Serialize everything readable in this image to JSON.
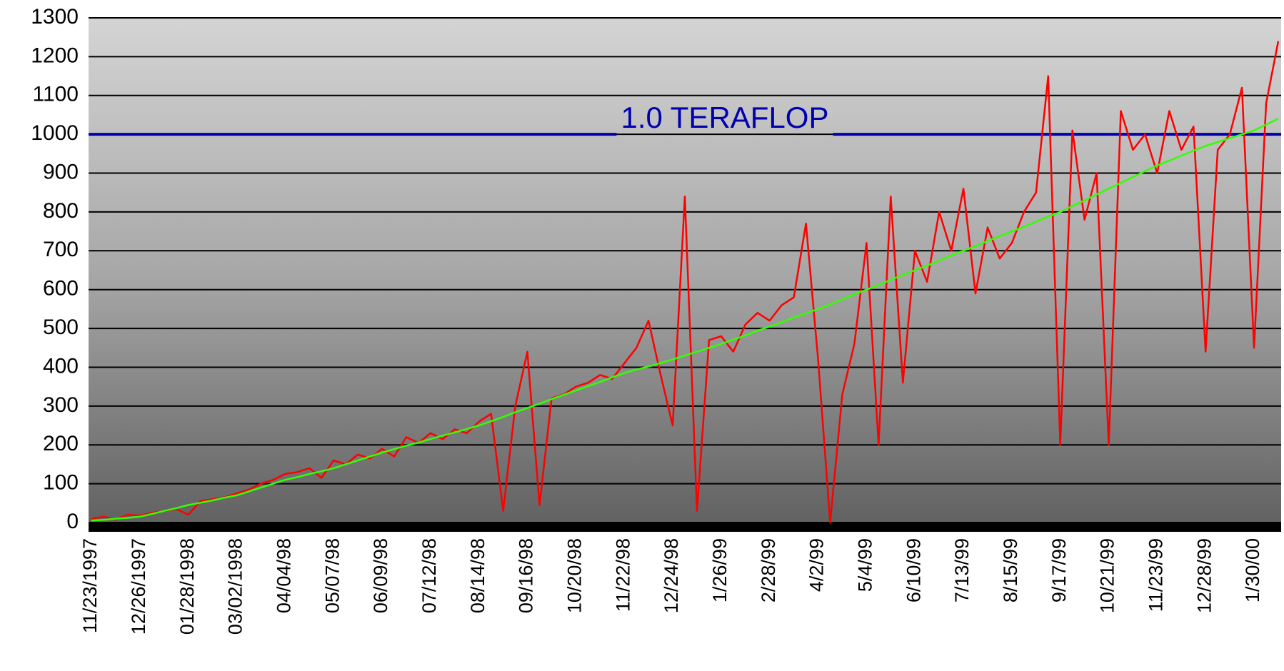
{
  "chart_data": {
    "type": "line",
    "categories": [
      "11/23/1997",
      null,
      null,
      null,
      "12/26/1997",
      null,
      null,
      null,
      "01/28/1998",
      null,
      null,
      null,
      "03/02/1998",
      null,
      null,
      null,
      "04/04/98",
      null,
      null,
      null,
      "05/07/98",
      null,
      null,
      null,
      "06/09/98",
      null,
      null,
      null,
      "07/12/98",
      null,
      null,
      null,
      "08/14/98",
      null,
      null,
      null,
      "09/16/98",
      null,
      null,
      null,
      "10/20/98",
      null,
      null,
      null,
      "11/22/98",
      null,
      null,
      null,
      "12/24/98",
      null,
      null,
      null,
      "1/26/99",
      null,
      null,
      null,
      "2/28/99",
      null,
      null,
      null,
      "4/2/99",
      null,
      null,
      null,
      "5/4/99",
      null,
      null,
      null,
      "6/10/99",
      null,
      null,
      null,
      "7/13/99",
      null,
      null,
      null,
      "8/15/99",
      null,
      null,
      null,
      "9/17/99",
      null,
      null,
      null,
      "10/21/99",
      null,
      null,
      null,
      "11/23/99",
      null,
      null,
      null,
      "12/28/99",
      null,
      null,
      null,
      "1/30/00",
      null,
      null
    ],
    "series": [
      {
        "color": "#ff0000",
        "values": [
          10,
          15,
          8,
          20,
          18,
          25,
          30,
          35,
          20,
          55,
          60,
          65,
          75,
          85,
          100,
          110,
          125,
          130,
          140,
          115,
          160,
          150,
          175,
          165,
          190,
          170,
          220,
          205,
          230,
          215,
          240,
          230,
          260,
          280,
          30,
          300,
          440,
          45,
          320,
          330,
          350,
          360,
          380,
          370,
          410,
          450,
          520,
          380,
          250,
          840,
          30,
          470,
          480,
          440,
          510,
          540,
          520,
          560,
          580,
          770,
          420,
          0,
          330,
          460,
          720,
          200,
          840,
          360,
          700,
          620,
          800,
          700,
          860,
          590,
          760,
          680,
          720,
          800,
          850,
          1150,
          200,
          1010,
          780,
          900,
          200,
          1060,
          960,
          1000,
          900,
          1060,
          960,
          1020,
          440,
          960,
          1000,
          1120,
          450,
          1080,
          1240
        ]
      },
      {
        "color": "#33ff00",
        "values": [
          5,
          7,
          10,
          12,
          15,
          22,
          30,
          37,
          45,
          51,
          57,
          64,
          70,
          80,
          90,
          100,
          110,
          117,
          125,
          132,
          140,
          150,
          160,
          170,
          180,
          189,
          198,
          206,
          215,
          224,
          232,
          241,
          250,
          261,
          272,
          284,
          295,
          306,
          318,
          329,
          340,
          351,
          362,
          374,
          385,
          394,
          402,
          411,
          420,
          430,
          440,
          450,
          460,
          471,
          482,
          494,
          505,
          516,
          528,
          539,
          550,
          562,
          575,
          588,
          600,
          612,
          625,
          638,
          650,
          662,
          675,
          688,
          700,
          712,
          725,
          738,
          750,
          762,
          775,
          788,
          800,
          815,
          830,
          845,
          860,
          875,
          890,
          905,
          920,
          932,
          945,
          958,
          970,
          980,
          990,
          1000,
          1010,
          1025,
          1040
        ]
      }
    ],
    "reference_line": {
      "value": 1000,
      "label": "1.0 TERAFLOP",
      "color": "#0000b0"
    },
    "ylim": [
      0,
      1300
    ],
    "yticks": [
      0,
      100,
      200,
      300,
      400,
      500,
      600,
      700,
      800,
      900,
      1000,
      1100,
      1200,
      1300
    ],
    "grid": true
  }
}
